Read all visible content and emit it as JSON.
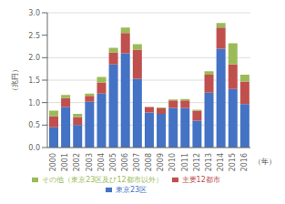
{
  "chart_data": {
    "type": "bar",
    "stacked": true,
    "categories": [
      "2000",
      "2001",
      "2002",
      "2003",
      "2004",
      "2005",
      "2006",
      "2007",
      "2008",
      "2009",
      "2010",
      "2011",
      "2012",
      "2013",
      "2014",
      "2015",
      "2016"
    ],
    "series": [
      {
        "name": "東京23区",
        "color": "#4472c4",
        "values": [
          0.45,
          0.9,
          0.5,
          1.02,
          1.2,
          1.85,
          2.1,
          1.53,
          0.78,
          0.75,
          0.88,
          0.88,
          0.6,
          1.22,
          2.2,
          1.3,
          0.97
        ]
      },
      {
        "name": "主要12都市",
        "color": "#c0504d",
        "values": [
          0.25,
          0.2,
          0.18,
          0.13,
          0.25,
          0.27,
          0.45,
          0.65,
          0.12,
          0.12,
          0.17,
          0.17,
          0.22,
          0.4,
          0.47,
          0.55,
          0.5
        ]
      },
      {
        "name": "その他（東京23区及び12都市以外）",
        "color": "#9bbb59",
        "values": [
          0.12,
          0.07,
          0.07,
          0.05,
          0.12,
          0.1,
          0.12,
          0.12,
          0.0,
          0.02,
          0.02,
          0.03,
          0.02,
          0.08,
          0.1,
          0.47,
          0.15
        ]
      }
    ],
    "ylim": [
      0.0,
      3.0
    ],
    "yticks": [
      {
        "value": 0,
        "label": "0.0"
      },
      0.5,
      {
        "value": 1,
        "label": "1.0"
      },
      1.5,
      {
        "value": 2,
        "label": "2.0"
      },
      2.5,
      {
        "value": 3,
        "label": "3.0"
      }
    ],
    "ylabel": "（兆円）",
    "xlabel": "（年）",
    "grid": true,
    "legend": "bottom"
  }
}
